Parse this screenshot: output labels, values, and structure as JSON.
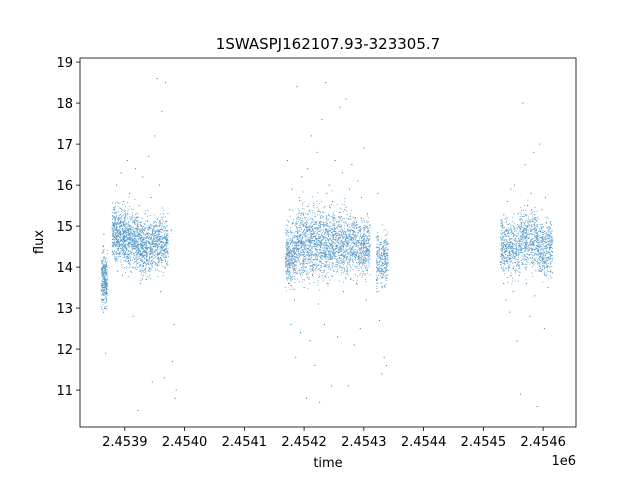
{
  "chart_data": {
    "type": "scatter",
    "title": "1SWASPJ162107.93-323305.7",
    "xlabel": "time",
    "ylabel": "flux",
    "x_offset_label": "1e6",
    "xlim": [
      2453825,
      2454655
    ],
    "ylim": [
      10.1,
      19.1
    ],
    "x_ticks": [
      {
        "value": 2453900,
        "label": "2.4539"
      },
      {
        "value": 2454000,
        "label": "2.4540"
      },
      {
        "value": 2454100,
        "label": "2.4541"
      },
      {
        "value": 2454200,
        "label": "2.4542"
      },
      {
        "value": 2454300,
        "label": "2.4543"
      },
      {
        "value": 2454400,
        "label": "2.4544"
      },
      {
        "value": 2454500,
        "label": "2.4545"
      },
      {
        "value": 2454600,
        "label": "2.4546"
      }
    ],
    "y_ticks": [
      {
        "value": 11,
        "label": "11"
      },
      {
        "value": 12,
        "label": "12"
      },
      {
        "value": 13,
        "label": "13"
      },
      {
        "value": 14,
        "label": "14"
      },
      {
        "value": 15,
        "label": "15"
      },
      {
        "value": 16,
        "label": "16"
      },
      {
        "value": 17,
        "label": "17"
      },
      {
        "value": 18,
        "label": "18"
      },
      {
        "value": 19,
        "label": "19"
      }
    ],
    "grid": false,
    "marker_color": "#1f77b4",
    "series": [
      {
        "points": [
          [
            2453863,
            13.8
          ],
          [
            2453863,
            13.2
          ],
          [
            2453864,
            14.5
          ],
          [
            2453864,
            12.9
          ],
          [
            2453865,
            13.5
          ],
          [
            2453865,
            14.8
          ],
          [
            2453866,
            13.0
          ],
          [
            2453867,
            14.2
          ],
          [
            2453868,
            11.9
          ],
          [
            2453870,
            13.6
          ],
          [
            2453880,
            14.6
          ],
          [
            2453882,
            15.4
          ],
          [
            2453884,
            14.2
          ],
          [
            2453886,
            16.0
          ],
          [
            2453888,
            13.9
          ],
          [
            2453890,
            15.2
          ],
          [
            2453892,
            14.8
          ],
          [
            2453894,
            16.3
          ],
          [
            2453896,
            13.8
          ],
          [
            2453898,
            15.6
          ],
          [
            2453902,
            14.9
          ],
          [
            2453904,
            16.6
          ],
          [
            2453906,
            14.3
          ],
          [
            2453908,
            15.8
          ],
          [
            2453910,
            13.9
          ],
          [
            2453912,
            14.7
          ],
          [
            2453914,
            12.8
          ],
          [
            2453916,
            15.1
          ],
          [
            2453918,
            16.4
          ],
          [
            2453920,
            14.4
          ],
          [
            2453922,
            10.5
          ],
          [
            2453924,
            15.5
          ],
          [
            2453926,
            13.6
          ],
          [
            2453928,
            14.9
          ],
          [
            2453930,
            16.2
          ],
          [
            2453932,
            14.1
          ],
          [
            2453934,
            15.3
          ],
          [
            2453936,
            13.7
          ],
          [
            2453938,
            14.8
          ],
          [
            2453940,
            16.7
          ],
          [
            2453942,
            13.9
          ],
          [
            2453944,
            15.7
          ],
          [
            2453946,
            11.2
          ],
          [
            2453948,
            14.5
          ],
          [
            2453950,
            17.2
          ],
          [
            2453952,
            15.0
          ],
          [
            2453954,
            18.6
          ],
          [
            2453956,
            14.2
          ],
          [
            2453958,
            16.0
          ],
          [
            2453960,
            13.4
          ],
          [
            2453962,
            17.8
          ],
          [
            2453964,
            15.3
          ],
          [
            2453966,
            11.3
          ],
          [
            2453968,
            18.5
          ],
          [
            2453970,
            14.6
          ],
          [
            2453978,
            14.9
          ],
          [
            2453980,
            11.7
          ],
          [
            2453982,
            12.6
          ],
          [
            2453984,
            10.8
          ],
          [
            2453986,
            11.0
          ],
          [
            2454170,
            14.2
          ],
          [
            2454172,
            16.6
          ],
          [
            2454174,
            13.6
          ],
          [
            2454176,
            15.4
          ],
          [
            2454178,
            12.6
          ],
          [
            2454180,
            15.9
          ],
          [
            2454182,
            14.1
          ],
          [
            2454184,
            13.2
          ],
          [
            2454186,
            11.8
          ],
          [
            2454188,
            18.4
          ],
          [
            2454190,
            14.6
          ],
          [
            2454192,
            15.7
          ],
          [
            2454194,
            12.4
          ],
          [
            2454196,
            16.2
          ],
          [
            2454198,
            14.0
          ],
          [
            2454200,
            13.5
          ],
          [
            2454202,
            15.0
          ],
          [
            2454204,
            10.8
          ],
          [
            2454206,
            16.4
          ],
          [
            2454208,
            14.3
          ],
          [
            2454210,
            12.2
          ],
          [
            2454212,
            17.2
          ],
          [
            2454214,
            13.8
          ],
          [
            2454216,
            15.5
          ],
          [
            2454218,
            11.6
          ],
          [
            2454220,
            14.7
          ],
          [
            2454222,
            16.8
          ],
          [
            2454224,
            13.1
          ],
          [
            2454226,
            10.7
          ],
          [
            2454228,
            15.2
          ],
          [
            2454230,
            17.6
          ],
          [
            2454232,
            14.4
          ],
          [
            2454234,
            12.6
          ],
          [
            2454236,
            18.5
          ],
          [
            2454238,
            15.8
          ],
          [
            2454240,
            13.6
          ],
          [
            2454242,
            16.0
          ],
          [
            2454244,
            14.2
          ],
          [
            2454246,
            11.1
          ],
          [
            2454248,
            15.6
          ],
          [
            2454250,
            13.9
          ],
          [
            2454252,
            16.6
          ],
          [
            2454254,
            14.5
          ],
          [
            2454256,
            12.3
          ],
          [
            2454258,
            15.1
          ],
          [
            2454260,
            17.9
          ],
          [
            2454262,
            14.0
          ],
          [
            2454264,
            16.3
          ],
          [
            2454266,
            13.4
          ],
          [
            2454268,
            15.4
          ],
          [
            2454270,
            18.1
          ],
          [
            2454272,
            14.7
          ],
          [
            2454274,
            11.1
          ],
          [
            2454276,
            15.9
          ],
          [
            2454278,
            13.7
          ],
          [
            2454280,
            16.5
          ],
          [
            2454282,
            14.3
          ],
          [
            2454284,
            12.1
          ],
          [
            2454286,
            15.2
          ],
          [
            2454288,
            13.6
          ],
          [
            2454290,
            16.1
          ],
          [
            2454292,
            14.6
          ],
          [
            2454294,
            12.5
          ],
          [
            2454296,
            15.7
          ],
          [
            2454298,
            13.8
          ],
          [
            2454300,
            16.9
          ],
          [
            2454302,
            14.1
          ],
          [
            2454304,
            13.2
          ],
          [
            2454306,
            15.3
          ],
          [
            2454308,
            14.4
          ],
          [
            2454322,
            13.4
          ],
          [
            2454324,
            15.8
          ],
          [
            2454326,
            12.7
          ],
          [
            2454328,
            14.6
          ],
          [
            2454330,
            11.4
          ],
          [
            2454332,
            13.9
          ],
          [
            2454334,
            11.8
          ],
          [
            2454336,
            14.2
          ],
          [
            2454338,
            11.6
          ],
          [
            2454530,
            14.3
          ],
          [
            2454532,
            15.1
          ],
          [
            2454534,
            13.6
          ],
          [
            2454536,
            14.8
          ],
          [
            2454538,
            13.2
          ],
          [
            2454540,
            15.6
          ],
          [
            2454542,
            14.0
          ],
          [
            2454544,
            12.9
          ],
          [
            2454546,
            15.9
          ],
          [
            2454548,
            14.5
          ],
          [
            2454550,
            13.4
          ],
          [
            2454552,
            16.0
          ],
          [
            2454554,
            14.7
          ],
          [
            2454556,
            12.2
          ],
          [
            2454558,
            15.3
          ],
          [
            2454560,
            13.8
          ],
          [
            2454562,
            10.9
          ],
          [
            2454564,
            15.0
          ],
          [
            2454566,
            18.0
          ],
          [
            2454568,
            14.2
          ],
          [
            2454570,
            16.5
          ],
          [
            2454572,
            13.6
          ],
          [
            2454574,
            15.5
          ],
          [
            2454576,
            14.4
          ],
          [
            2454578,
            12.8
          ],
          [
            2454580,
            15.8
          ],
          [
            2454582,
            14.1
          ],
          [
            2454584,
            16.8
          ],
          [
            2454586,
            13.3
          ],
          [
            2454588,
            15.2
          ],
          [
            2454590,
            10.6
          ],
          [
            2454592,
            14.6
          ],
          [
            2454594,
            17.0
          ],
          [
            2454596,
            13.9
          ],
          [
            2454598,
            15.4
          ],
          [
            2454600,
            14.3
          ],
          [
            2454602,
            12.5
          ],
          [
            2454604,
            15.7
          ],
          [
            2454606,
            14.0
          ],
          [
            2454608,
            13.5
          ],
          [
            2454610,
            14.8
          ],
          [
            2454612,
            14.2
          ]
        ]
      }
    ]
  }
}
